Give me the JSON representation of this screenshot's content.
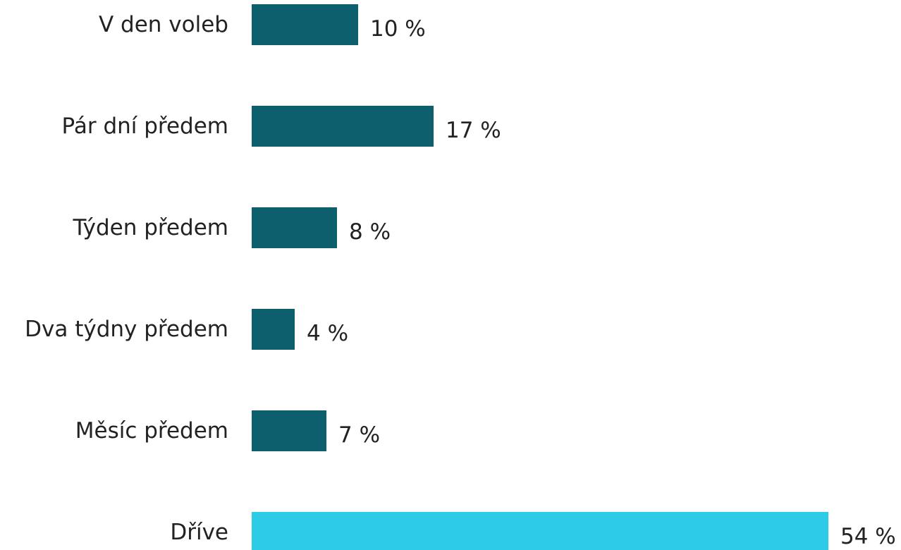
{
  "chart_data": {
    "type": "bar",
    "orientation": "horizontal",
    "categories": [
      "V den voleb",
      "Pár dní předem",
      "Týden předem",
      "Dva týdny předem",
      "Měsíc předem",
      "Dříve"
    ],
    "values": [
      10,
      17,
      8,
      4,
      7,
      54
    ],
    "value_labels": [
      "10 %",
      "17 %",
      "8 %",
      "4 %",
      "7 %",
      "54 %"
    ],
    "unit": "%",
    "title": "",
    "xlabel": "",
    "ylabel": "",
    "xlim": [
      0,
      54
    ],
    "grid": false,
    "legend": "none",
    "colors": {
      "default": "#0d5f6d",
      "highlight": "#2dcbe5"
    },
    "highlight_index": 5
  }
}
